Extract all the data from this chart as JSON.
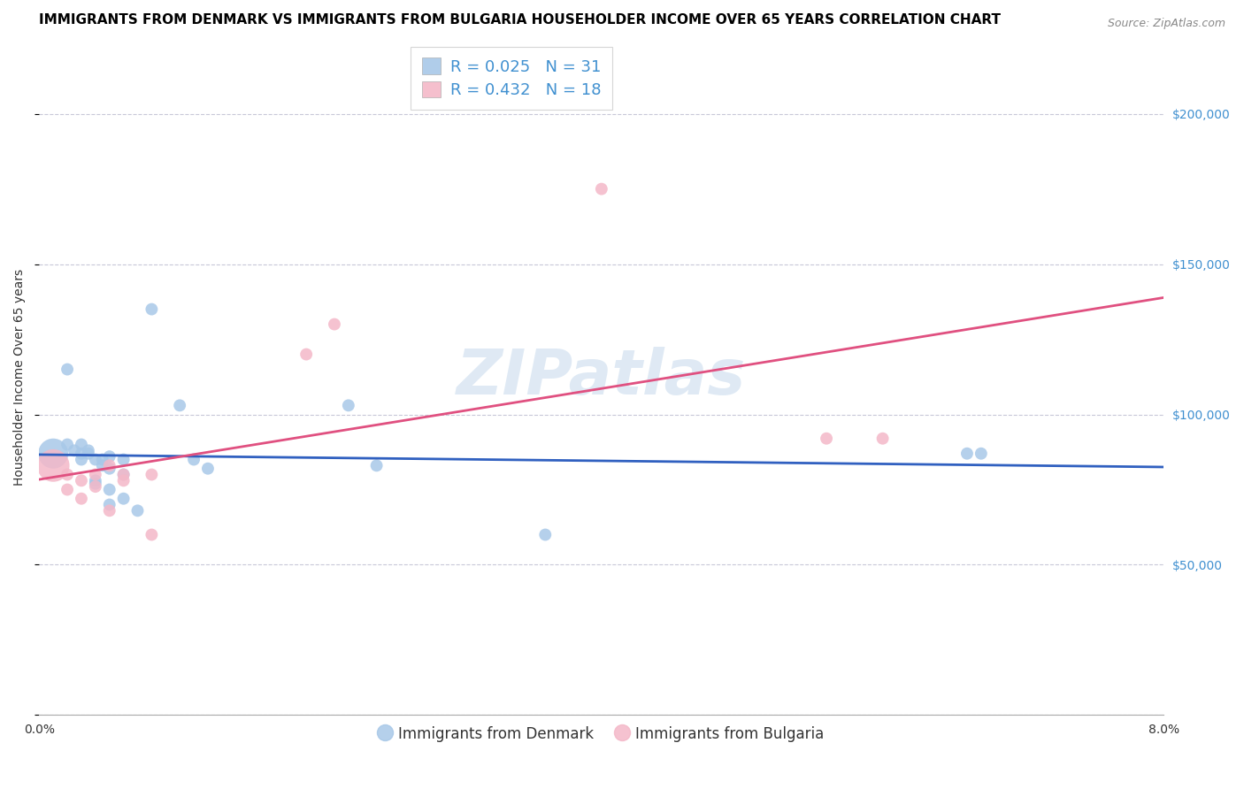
{
  "title": "IMMIGRANTS FROM DENMARK VS IMMIGRANTS FROM BULGARIA HOUSEHOLDER INCOME OVER 65 YEARS CORRELATION CHART",
  "source": "Source: ZipAtlas.com",
  "ylabel": "Householder Income Over 65 years",
  "xlim": [
    0.0,
    0.08
  ],
  "ylim": [
    0,
    225000
  ],
  "yticks": [
    0,
    50000,
    100000,
    150000,
    200000
  ],
  "ytick_labels": [
    "",
    "$50,000",
    "$100,000",
    "$150,000",
    "$200,000"
  ],
  "xticks": [
    0.0,
    0.01,
    0.02,
    0.03,
    0.04,
    0.05,
    0.06,
    0.07,
    0.08
  ],
  "xtick_labels": [
    "0.0%",
    "",
    "",
    "",
    "",
    "",
    "",
    "",
    "8.0%"
  ],
  "watermark": "ZIPatlas",
  "legend_denmark_r": "R = 0.025",
  "legend_denmark_n": "N = 31",
  "legend_bulgaria_r": "R = 0.432",
  "legend_bulgaria_n": "N = 18",
  "denmark_color": "#a8c8e8",
  "bulgaria_color": "#f4b8c8",
  "denmark_line_color": "#3060c0",
  "bulgaria_line_color": "#e05080",
  "background_color": "#ffffff",
  "denmark_x": [
    0.001,
    0.002,
    0.002,
    0.0025,
    0.003,
    0.003,
    0.003,
    0.0035,
    0.0035,
    0.004,
    0.004,
    0.004,
    0.0045,
    0.0045,
    0.005,
    0.005,
    0.005,
    0.005,
    0.006,
    0.006,
    0.006,
    0.007,
    0.008,
    0.01,
    0.011,
    0.012,
    0.022,
    0.024,
    0.036,
    0.066,
    0.067
  ],
  "denmark_y": [
    87000,
    115000,
    90000,
    88000,
    90000,
    87000,
    85000,
    88000,
    87000,
    85000,
    78000,
    77000,
    85000,
    83000,
    86000,
    82000,
    75000,
    70000,
    85000,
    80000,
    72000,
    68000,
    135000,
    103000,
    85000,
    82000,
    103000,
    83000,
    60000,
    87000,
    87000
  ],
  "denmark_size": [
    600,
    100,
    100,
    100,
    100,
    100,
    100,
    100,
    100,
    100,
    100,
    100,
    100,
    100,
    100,
    100,
    100,
    100,
    100,
    100,
    100,
    100,
    100,
    100,
    100,
    100,
    100,
    100,
    100,
    100,
    100
  ],
  "bulgaria_x": [
    0.001,
    0.002,
    0.002,
    0.003,
    0.003,
    0.004,
    0.004,
    0.005,
    0.005,
    0.006,
    0.006,
    0.008,
    0.008,
    0.019,
    0.021,
    0.04,
    0.056,
    0.06
  ],
  "bulgaria_y": [
    83000,
    80000,
    75000,
    78000,
    72000,
    80000,
    76000,
    83000,
    68000,
    80000,
    78000,
    80000,
    60000,
    120000,
    130000,
    175000,
    92000,
    92000
  ],
  "bulgaria_size": [
    700,
    100,
    100,
    100,
    100,
    100,
    100,
    100,
    100,
    100,
    100,
    100,
    100,
    100,
    100,
    100,
    100,
    100
  ],
  "grid_color": "#c8c8d8",
  "title_fontsize": 11,
  "axis_label_fontsize": 10,
  "tick_label_fontsize": 10,
  "right_ytick_color": "#4090d0",
  "legend_r_color": "#4090d0",
  "legend_n_color": "#4090d0"
}
